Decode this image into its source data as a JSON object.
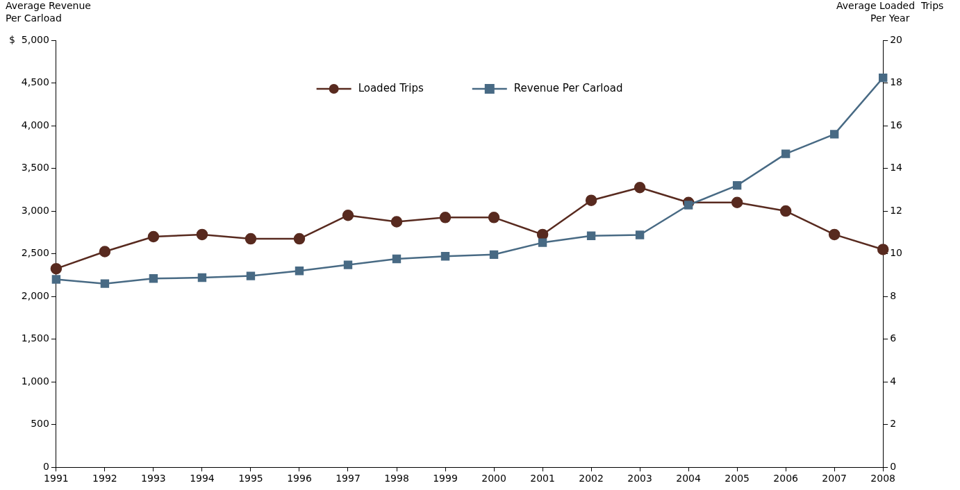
{
  "chart_data": {
    "type": "line",
    "ylabel": "Average Revenue\nPer Carload",
    "y2label": "Average Loaded  Trips\nPer Year",
    "categories": [
      "1991",
      "1992",
      "1993",
      "1994",
      "1995",
      "1996",
      "1997",
      "1998",
      "1999",
      "2000",
      "2001",
      "2002",
      "2003",
      "2004",
      "2005",
      "2006",
      "2007",
      "2008"
    ],
    "series": [
      {
        "name": "Loaded Trips",
        "color": "#582a1f",
        "axis": "y2",
        "marker": "circle",
        "values": [
          9.3,
          10.1,
          10.8,
          10.9,
          10.7,
          10.7,
          11.8,
          11.5,
          11.7,
          11.7,
          10.9,
          12.5,
          13.1,
          12.4,
          12.4,
          12.0,
          10.9,
          10.2
        ]
      },
      {
        "name": "Revenue Per Carload",
        "color": "#486a84",
        "marker": "square",
        "values": [
          2200,
          2150,
          2210,
          2220,
          2240,
          2300,
          2370,
          2440,
          2470,
          2490,
          2630,
          2710,
          2720,
          3070,
          3300,
          3670,
          3900,
          4560
        ]
      }
    ],
    "ylim": [
      0,
      5000
    ],
    "yticks": [
      0,
      500,
      {
        "value": 1000,
        "label": "1,000"
      },
      {
        "value": 1500,
        "label": "1,500"
      },
      {
        "value": 2000,
        "label": "2,000"
      },
      {
        "value": 2500,
        "label": "2,500"
      },
      {
        "value": 3000,
        "label": "3,000"
      },
      {
        "value": 3500,
        "label": "3,500"
      },
      {
        "value": 4000,
        "label": "4,000"
      },
      {
        "value": 4500,
        "label": "4,500"
      },
      {
        "value": 5000,
        "label": "$  5,000"
      }
    ],
    "y2lim": [
      0,
      20
    ],
    "y2ticks": [
      0,
      2,
      4,
      6,
      8,
      10,
      12,
      14,
      16,
      18,
      20
    ],
    "grid": false,
    "legend": "top",
    "line_style": "solid"
  }
}
